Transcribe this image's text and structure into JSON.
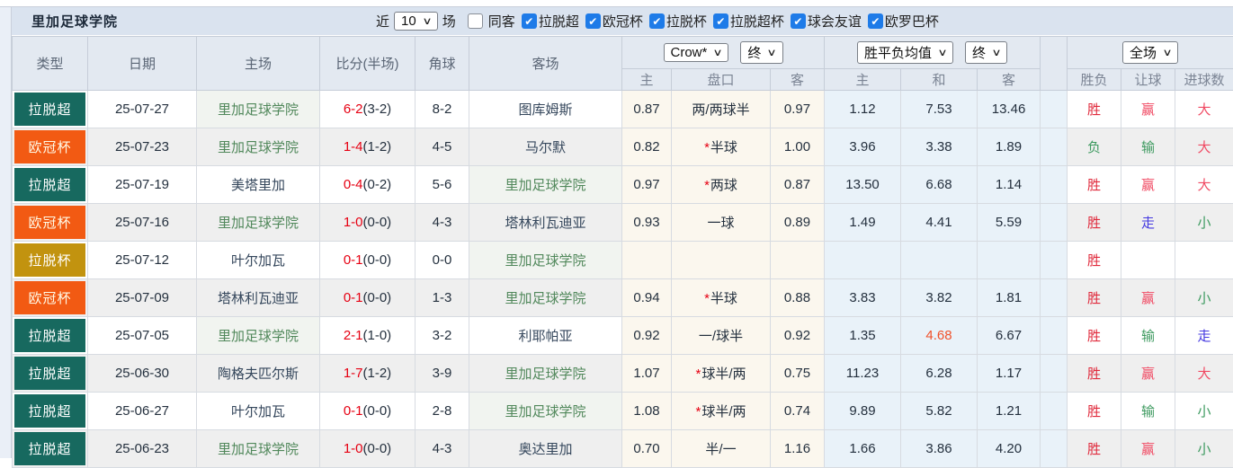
{
  "header": {
    "title": "里加足球学院",
    "recent_label": "近",
    "recent_value": "10",
    "recent_suffix": "场",
    "same_away_label": "同客",
    "leagues": [
      "拉脱超",
      "欧冠杯",
      "拉脱杯",
      "拉脱超杯",
      "球会友谊",
      "欧罗巴杯"
    ],
    "checkbox_color": "#1e7be8",
    "check_glyph": "✔"
  },
  "table": {
    "columns": [
      "类型",
      "日期",
      "主场",
      "比分(半场)",
      "角球",
      "客场"
    ],
    "selects": {
      "bookmaker": "Crow*",
      "bookmaker_time": "终",
      "average": "胜平负均值",
      "average_time": "终",
      "scope": "全场"
    },
    "sub_headers": [
      "主",
      "盘口",
      "客",
      "主",
      "和",
      "客",
      "胜负",
      "让球",
      "进球数"
    ],
    "league_colors": {
      "拉脱超": "#17695f",
      "欧冠杯": "#f25a13",
      "拉脱杯": "#c2930f"
    },
    "result_colors": {
      "red": "#e02a3c",
      "pink": "#f04a63",
      "green": "#3d9a5f",
      "blue": "#4439e0"
    },
    "rows": [
      {
        "league": "拉脱超",
        "date": "25-07-27",
        "home": "里加足球学院",
        "home_focus": true,
        "score": "6-2",
        "half": "(3-2)",
        "corners": "8-2",
        "away": "图库姆斯",
        "away_focus": false,
        "odds_home": "0.87",
        "handicap_star": "",
        "handicap": "两/两球半",
        "odds_away": "0.97",
        "avg_home": "1.12",
        "avg_draw": "7.53",
        "avg_away": "13.46",
        "avg_draw_hl": false,
        "result": "胜",
        "result_cls": "red",
        "handicap_res": "赢",
        "handicap_cls": "pink",
        "goals": "大",
        "goals_cls": "pink"
      },
      {
        "league": "欧冠杯",
        "date": "25-07-23",
        "home": "里加足球学院",
        "home_focus": true,
        "score": "1-4",
        "half": "(1-2)",
        "corners": "4-5",
        "away": "马尔默",
        "away_focus": false,
        "odds_home": "0.82",
        "handicap_star": "*",
        "handicap": "半球",
        "odds_away": "1.00",
        "avg_home": "3.96",
        "avg_draw": "3.38",
        "avg_away": "1.89",
        "avg_draw_hl": false,
        "result": "负",
        "result_cls": "green",
        "handicap_res": "输",
        "handicap_cls": "green",
        "goals": "大",
        "goals_cls": "pink"
      },
      {
        "league": "拉脱超",
        "date": "25-07-19",
        "home": "美塔里加",
        "home_focus": false,
        "score": "0-4",
        "half": "(0-2)",
        "corners": "5-6",
        "away": "里加足球学院",
        "away_focus": true,
        "odds_home": "0.97",
        "handicap_star": "*",
        "handicap": "两球",
        "odds_away": "0.87",
        "avg_home": "13.50",
        "avg_draw": "6.68",
        "avg_away": "1.14",
        "avg_draw_hl": false,
        "result": "胜",
        "result_cls": "red",
        "handicap_res": "赢",
        "handicap_cls": "pink",
        "goals": "大",
        "goals_cls": "pink"
      },
      {
        "league": "欧冠杯",
        "date": "25-07-16",
        "home": "里加足球学院",
        "home_focus": true,
        "score": "1-0",
        "half": "(0-0)",
        "corners": "4-3",
        "away": "塔林利瓦迪亚",
        "away_focus": false,
        "odds_home": "0.93",
        "handicap_star": "",
        "handicap": "一球",
        "odds_away": "0.89",
        "avg_home": "1.49",
        "avg_draw": "4.41",
        "avg_away": "5.59",
        "avg_draw_hl": false,
        "result": "胜",
        "result_cls": "red",
        "handicap_res": "走",
        "handicap_cls": "blue",
        "goals": "小",
        "goals_cls": "green"
      },
      {
        "league": "拉脱杯",
        "date": "25-07-12",
        "home": "叶尔加瓦",
        "home_focus": false,
        "score": "0-1",
        "half": "(0-0)",
        "corners": "0-0",
        "away": "里加足球学院",
        "away_focus": true,
        "odds_home": "",
        "handicap_star": "",
        "handicap": "",
        "odds_away": "",
        "avg_home": "",
        "avg_draw": "",
        "avg_away": "",
        "avg_draw_hl": false,
        "result": "胜",
        "result_cls": "red",
        "handicap_res": "",
        "handicap_cls": "red",
        "goals": "",
        "goals_cls": "red"
      },
      {
        "league": "欧冠杯",
        "date": "25-07-09",
        "home": "塔林利瓦迪亚",
        "home_focus": false,
        "score": "0-1",
        "half": "(0-0)",
        "corners": "1-3",
        "away": "里加足球学院",
        "away_focus": true,
        "odds_home": "0.94",
        "handicap_star": "*",
        "handicap": "半球",
        "odds_away": "0.88",
        "avg_home": "3.83",
        "avg_draw": "3.82",
        "avg_away": "1.81",
        "avg_draw_hl": false,
        "result": "胜",
        "result_cls": "red",
        "handicap_res": "赢",
        "handicap_cls": "pink",
        "goals": "小",
        "goals_cls": "green"
      },
      {
        "league": "拉脱超",
        "date": "25-07-05",
        "home": "里加足球学院",
        "home_focus": true,
        "score": "2-1",
        "half": "(1-0)",
        "corners": "3-2",
        "away": "利耶帕亚",
        "away_focus": false,
        "odds_home": "0.92",
        "handicap_star": "",
        "handicap": "一/球半",
        "odds_away": "0.92",
        "avg_home": "1.35",
        "avg_draw": "4.68",
        "avg_away": "6.67",
        "avg_draw_hl": true,
        "result": "胜",
        "result_cls": "red",
        "handicap_res": "输",
        "handicap_cls": "green",
        "goals": "走",
        "goals_cls": "blue"
      },
      {
        "league": "拉脱超",
        "date": "25-06-30",
        "home": "陶格夫匹尔斯",
        "home_focus": false,
        "score": "1-7",
        "half": "(1-2)",
        "corners": "3-9",
        "away": "里加足球学院",
        "away_focus": true,
        "odds_home": "1.07",
        "handicap_star": "*",
        "handicap": "球半/两",
        "odds_away": "0.75",
        "avg_home": "11.23",
        "avg_draw": "6.28",
        "avg_away": "1.17",
        "avg_draw_hl": false,
        "result": "胜",
        "result_cls": "red",
        "handicap_res": "赢",
        "handicap_cls": "pink",
        "goals": "大",
        "goals_cls": "pink"
      },
      {
        "league": "拉脱超",
        "date": "25-06-27",
        "home": "叶尔加瓦",
        "home_focus": false,
        "score": "0-1",
        "half": "(0-0)",
        "corners": "2-8",
        "away": "里加足球学院",
        "away_focus": true,
        "odds_home": "1.08",
        "handicap_star": "*",
        "handicap": "球半/两",
        "odds_away": "0.74",
        "avg_home": "9.89",
        "avg_draw": "5.82",
        "avg_away": "1.21",
        "avg_draw_hl": false,
        "result": "胜",
        "result_cls": "red",
        "handicap_res": "输",
        "handicap_cls": "green",
        "goals": "小",
        "goals_cls": "green"
      },
      {
        "league": "拉脱超",
        "date": "25-06-23",
        "home": "里加足球学院",
        "home_focus": true,
        "score": "1-0",
        "half": "(0-0)",
        "corners": "4-3",
        "away": "奥达里加",
        "away_focus": false,
        "odds_home": "0.70",
        "handicap_star": "",
        "handicap": "半/一",
        "odds_away": "1.16",
        "avg_home": "1.66",
        "avg_draw": "3.86",
        "avg_away": "4.20",
        "avg_draw_hl": false,
        "result": "胜",
        "result_cls": "red",
        "handicap_res": "赢",
        "handicap_cls": "pink",
        "goals": "小",
        "goals_cls": "green"
      }
    ]
  }
}
